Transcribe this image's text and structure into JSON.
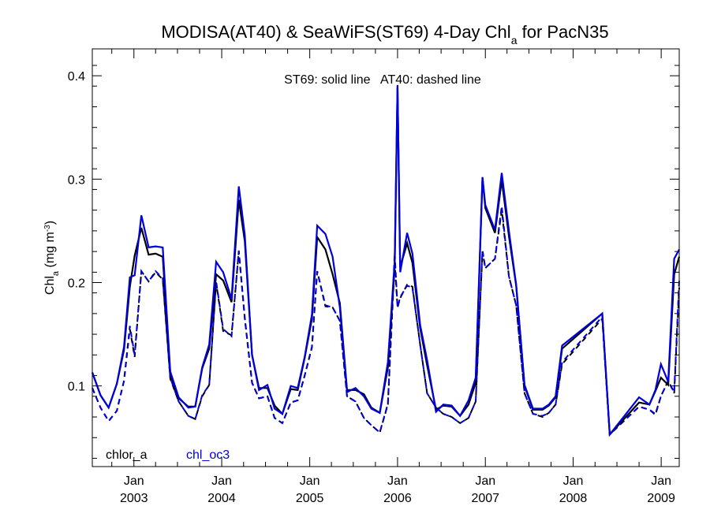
{
  "chart_data": {
    "type": "line",
    "title_main": "MODISA(AT40) & SeaWiFS(ST69) 4-Day Chl",
    "title_sub": "a",
    "title_tail": " for PacN35",
    "ylabel_main": "Chl",
    "ylabel_sub": "a",
    "ylabel_unit": " (mg m",
    "ylabel_sup": "-3",
    "ylabel_close": ")",
    "annotation": "ST69: solid line   AT40: dashed line",
    "legend": {
      "placement": "bottom-left",
      "label_black": "chlor_a",
      "label_blue": "chl_oc3"
    },
    "xlim": [
      "2002-07-12",
      "2009-03-17"
    ],
    "ylim": [
      0.022,
      0.426
    ],
    "y_ticks": [
      0.1,
      0.2,
      0.3,
      0.4
    ],
    "y_tick_labels": [
      "0.1",
      "0.2",
      "0.3",
      "0.4"
    ],
    "x_ticks": [
      "2003-01-01",
      "2004-01-01",
      "2005-01-01",
      "2006-01-01",
      "2007-01-01",
      "2008-01-01",
      "2009-01-01"
    ],
    "x_tick_labels_top": [
      "Jan",
      "Jan",
      "Jan",
      "Jan",
      "Jan",
      "Jan",
      "Jan"
    ],
    "x_tick_labels_bottom": [
      "2003",
      "2004",
      "2005",
      "2006",
      "2007",
      "2008",
      "2009"
    ],
    "x": [
      "2002-07-12",
      "2002-08-15",
      "2002-09-18",
      "2002-10-22",
      "2002-11-21",
      "2002-12-15",
      "2003-01-04",
      "2003-02-01",
      "2003-03-03",
      "2003-04-01",
      "2003-05-01",
      "2003-06-01",
      "2003-07-06",
      "2003-08-15",
      "2003-09-13",
      "2003-10-12",
      "2003-11-10",
      "2003-12-09",
      "2004-01-07",
      "2004-02-11",
      "2004-03-12",
      "2004-04-06",
      "2004-05-06",
      "2004-06-04",
      "2004-07-09",
      "2004-08-08",
      "2004-09-09",
      "2004-10-14",
      "2004-11-12",
      "2004-12-11",
      "2005-01-10",
      "2005-02-01",
      "2005-03-07",
      "2005-04-06",
      "2005-05-06",
      "2005-06-05",
      "2005-07-10",
      "2005-08-14",
      "2005-09-14",
      "2005-10-19",
      "2005-11-22",
      "2005-12-20",
      "2006-01-01",
      "2006-01-12",
      "2006-02-10",
      "2006-03-04",
      "2006-04-05",
      "2006-05-04",
      "2006-06-10",
      "2006-07-10",
      "2006-08-14",
      "2006-09-18",
      "2006-10-23",
      "2006-11-22",
      "2006-12-20",
      "2007-01-01",
      "2007-02-10",
      "2007-03-10",
      "2007-04-09",
      "2007-05-09",
      "2007-06-13",
      "2007-07-18",
      "2007-08-27",
      "2007-09-22",
      "2007-10-20",
      "2007-11-16",
      "2008-05-01",
      "2008-06-01",
      "2008-10-01",
      "2008-11-13",
      "2008-12-08",
      "2008-12-31",
      "2009-01-30",
      "2009-02-24",
      "2009-03-17"
    ],
    "series": [
      {
        "name": "chlor_a",
        "color": "#000000",
        "style": "solid",
        "values": [
          0.113,
          0.091,
          0.079,
          0.102,
          0.135,
          0.196,
          0.226,
          0.253,
          0.227,
          0.228,
          0.225,
          0.112,
          0.088,
          0.08,
          0.08,
          0.117,
          0.136,
          0.208,
          0.202,
          0.181,
          0.28,
          0.24,
          0.13,
          0.098,
          0.098,
          0.081,
          0.073,
          0.097,
          0.096,
          0.127,
          0.165,
          0.244,
          0.232,
          0.208,
          0.18,
          0.096,
          0.096,
          0.092,
          0.079,
          0.074,
          0.118,
          0.214,
          0.389,
          0.215,
          0.238,
          0.219,
          0.156,
          0.12,
          0.077,
          0.081,
          0.08,
          0.071,
          0.082,
          0.103,
          0.301,
          0.272,
          0.248,
          0.299,
          0.245,
          0.197,
          0.1,
          0.077,
          0.077,
          0.081,
          0.089,
          0.136,
          0.17,
          0.053,
          0.084,
          0.082,
          0.095,
          0.108,
          0.101,
          0.208,
          0.225
        ]
      },
      {
        "name": "chl_oc3",
        "color": "#0000dd",
        "style": "solid",
        "values": [
          0.113,
          0.091,
          0.079,
          0.102,
          0.138,
          0.205,
          0.207,
          0.265,
          0.234,
          0.235,
          0.234,
          0.114,
          0.089,
          0.079,
          0.08,
          0.118,
          0.14,
          0.22,
          0.21,
          0.184,
          0.293,
          0.246,
          0.13,
          0.096,
          0.101,
          0.078,
          0.073,
          0.1,
          0.098,
          0.128,
          0.169,
          0.255,
          0.247,
          0.225,
          0.176,
          0.094,
          0.098,
          0.09,
          0.078,
          0.074,
          0.123,
          0.22,
          0.391,
          0.21,
          0.248,
          0.228,
          0.159,
          0.125,
          0.075,
          0.082,
          0.081,
          0.071,
          0.086,
          0.108,
          0.302,
          0.275,
          0.251,
          0.306,
          0.25,
          0.198,
          0.101,
          0.078,
          0.078,
          0.082,
          0.09,
          0.139,
          0.17,
          0.053,
          0.089,
          0.082,
          0.096,
          0.121,
          0.104,
          0.223,
          0.232
        ]
      },
      {
        "name": "chlor_a",
        "color": "#000000",
        "style": "dashed",
        "values": [
          0.098,
          0.079,
          0.066,
          0.076,
          0.105,
          0.155,
          0.128,
          0.211,
          0.201,
          0.21,
          0.203,
          0.107,
          0.085,
          0.071,
          0.068,
          0.09,
          0.101,
          0.2,
          0.153,
          0.149,
          0.23,
          0.165,
          0.103,
          0.088,
          0.09,
          0.069,
          0.064,
          0.084,
          0.086,
          0.11,
          0.137,
          0.211,
          0.177,
          0.176,
          0.163,
          0.09,
          0.085,
          0.069,
          0.062,
          0.055,
          0.082,
          0.22,
          0.176,
          0.185,
          0.198,
          0.196,
          0.14,
          0.093,
          0.079,
          0.073,
          0.07,
          0.064,
          0.069,
          0.085,
          0.23,
          0.214,
          0.223,
          0.27,
          0.206,
          0.178,
          0.093,
          0.073,
          0.07,
          0.074,
          0.082,
          0.121,
          0.165,
          0.053,
          0.08,
          0.077,
          0.072,
          0.09,
          0.105,
          0.093,
          0.195
        ]
      },
      {
        "name": "chl_oc3",
        "color": "#0000dd",
        "style": "dashed",
        "values": [
          0.098,
          0.079,
          0.066,
          0.076,
          0.105,
          0.158,
          0.13,
          0.211,
          0.201,
          0.211,
          0.204,
          0.108,
          0.085,
          0.071,
          0.068,
          0.091,
          0.101,
          0.201,
          0.155,
          0.148,
          0.231,
          0.166,
          0.103,
          0.088,
          0.09,
          0.069,
          0.064,
          0.084,
          0.086,
          0.11,
          0.138,
          0.211,
          0.178,
          0.176,
          0.163,
          0.09,
          0.085,
          0.069,
          0.062,
          0.055,
          0.083,
          0.229,
          0.176,
          0.186,
          0.197,
          0.195,
          0.14,
          0.093,
          0.079,
          0.073,
          0.07,
          0.064,
          0.069,
          0.085,
          0.231,
          0.214,
          0.223,
          0.274,
          0.206,
          0.178,
          0.093,
          0.073,
          0.071,
          0.074,
          0.082,
          0.123,
          0.167,
          0.053,
          0.08,
          0.077,
          0.073,
          0.09,
          0.105,
          0.094,
          0.203
        ]
      }
    ]
  }
}
